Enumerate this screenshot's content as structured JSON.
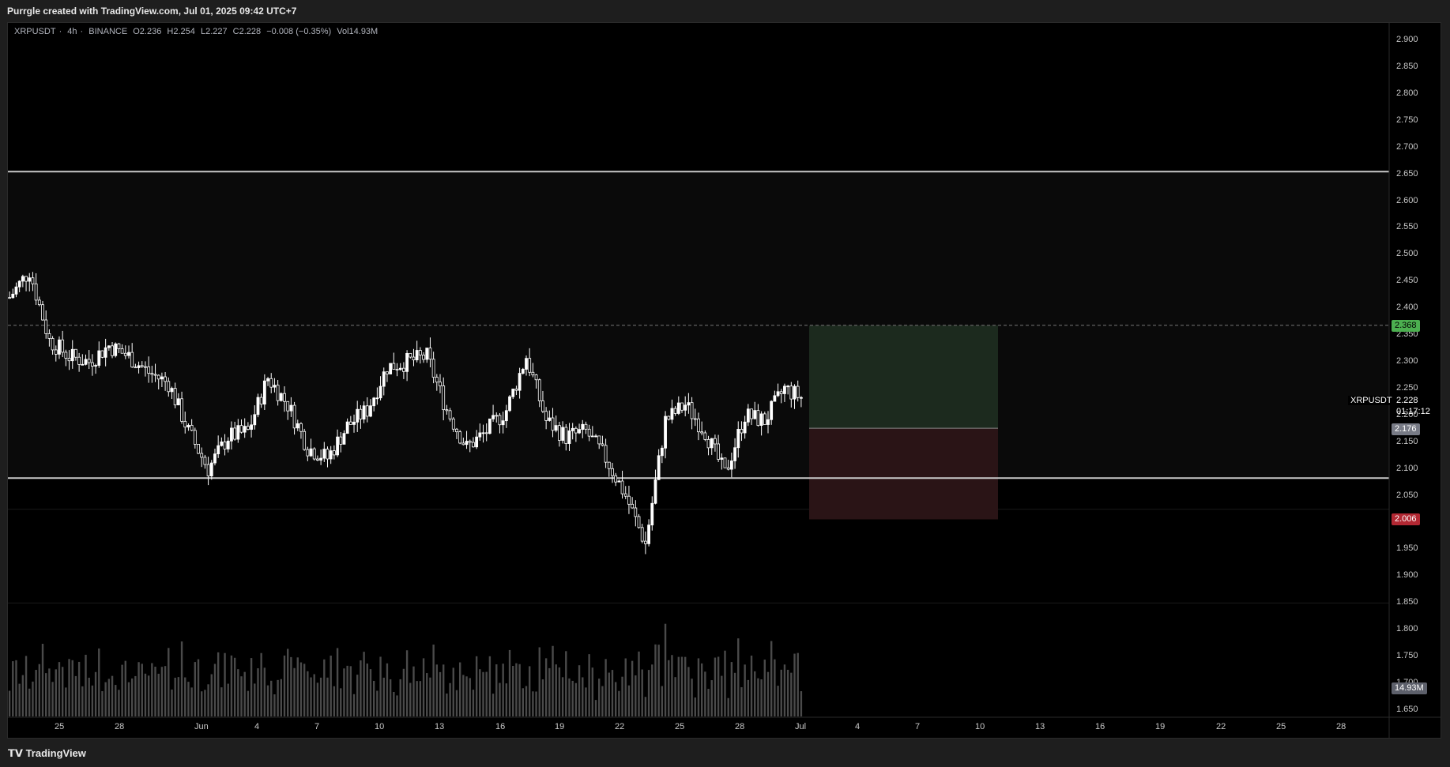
{
  "header": {
    "attribution": "Purrgle created with TradingView.com, Jul 01, 2025 09:42 UTC+7"
  },
  "legend": {
    "symbol": "XRPUSDT",
    "interval": "4h",
    "exchange": "BINANCE",
    "open": "O2.236",
    "high": "H2.254",
    "low": "L2.227",
    "close": "C2.228",
    "change": "−0.008 (−0.35%)",
    "volume": "Vol14.93M"
  },
  "price_axis": {
    "ticks": [
      "2.900",
      "2.850",
      "2.800",
      "2.750",
      "2.700",
      "2.650",
      "2.600",
      "2.550",
      "2.500",
      "2.450",
      "2.400",
      "2.350",
      "2.300",
      "2.250",
      "2.200",
      "2.150",
      "2.100",
      "2.050",
      "2.000",
      "1.950",
      "1.900",
      "1.850",
      "1.800",
      "1.750",
      "1.700",
      "1.650"
    ],
    "tick_values": [
      2.9,
      2.85,
      2.8,
      2.75,
      2.7,
      2.65,
      2.6,
      2.55,
      2.5,
      2.45,
      2.4,
      2.35,
      2.3,
      2.25,
      2.2,
      2.15,
      2.1,
      2.05,
      2.0,
      1.95,
      1.9,
      1.85,
      1.8,
      1.75,
      1.7,
      1.65
    ]
  },
  "time_axis": {
    "ticks": [
      "25",
      "28",
      "Jun",
      "4",
      "7",
      "10",
      "13",
      "16",
      "19",
      "22",
      "25",
      "28",
      "Jul",
      "4",
      "7",
      "10",
      "13",
      "16",
      "19",
      "22",
      "25",
      "28"
    ]
  },
  "tags": {
    "target": {
      "text": "2.368",
      "color": "#4caf50"
    },
    "current_symbol": "XRPUSDT",
    "current_price": "2.228",
    "countdown": "01:17:12",
    "entry": {
      "text": "2.176",
      "color": "#787b86"
    },
    "stop": {
      "text": "2.006",
      "color": "#b22833"
    },
    "volume": {
      "text": "14.93M",
      "color": "#5d606b"
    }
  },
  "levels": {
    "resistance": 2.655,
    "support": 2.083,
    "dashed_target": 2.368
  },
  "position_tool": {
    "entry": 2.176,
    "target": 2.368,
    "stop": 2.006,
    "profit_color": "#1c2a1e",
    "loss_color": "#2a1416"
  },
  "chart_data": {
    "type": "candlestick",
    "symbol": "XRPUSDT",
    "interval": "4h",
    "x": [
      "May 22",
      "May 23",
      "May 24",
      "May 25",
      "May 26",
      "May 27",
      "May 28",
      "May 29",
      "May 30",
      "May 31",
      "Jun 1",
      "Jun 2",
      "Jun 3",
      "Jun 4",
      "Jun 5",
      "Jun 6",
      "Jun 7",
      "Jun 8",
      "Jun 9",
      "Jun 10",
      "Jun 11",
      "Jun 12",
      "Jun 13",
      "Jun 14",
      "Jun 15",
      "Jun 16",
      "Jun 17",
      "Jun 18",
      "Jun 19",
      "Jun 20",
      "Jun 21",
      "Jun 22",
      "Jun 23",
      "Jun 24",
      "Jun 25",
      "Jun 26",
      "Jun 27",
      "Jun 28",
      "Jun 29",
      "Jun 30",
      "Jul 1"
    ],
    "close_path": [
      2.42,
      2.47,
      2.34,
      2.31,
      2.3,
      2.33,
      2.31,
      2.28,
      2.26,
      2.17,
      2.1,
      2.16,
      2.17,
      2.27,
      2.22,
      2.14,
      2.12,
      2.18,
      2.21,
      2.29,
      2.3,
      2.31,
      2.21,
      2.14,
      2.17,
      2.21,
      2.31,
      2.19,
      2.16,
      2.17,
      2.12,
      2.05,
      1.96,
      2.19,
      2.22,
      2.17,
      2.09,
      2.2,
      2.19,
      2.25,
      2.23
    ],
    "ylim": [
      1.63,
      2.92
    ],
    "volume_shown": "14.93M"
  },
  "colors": {
    "background": "#000000",
    "candle": "#ffffff",
    "level_line": "#c8c8c8",
    "volume_bar": "#4a4a4a"
  }
}
